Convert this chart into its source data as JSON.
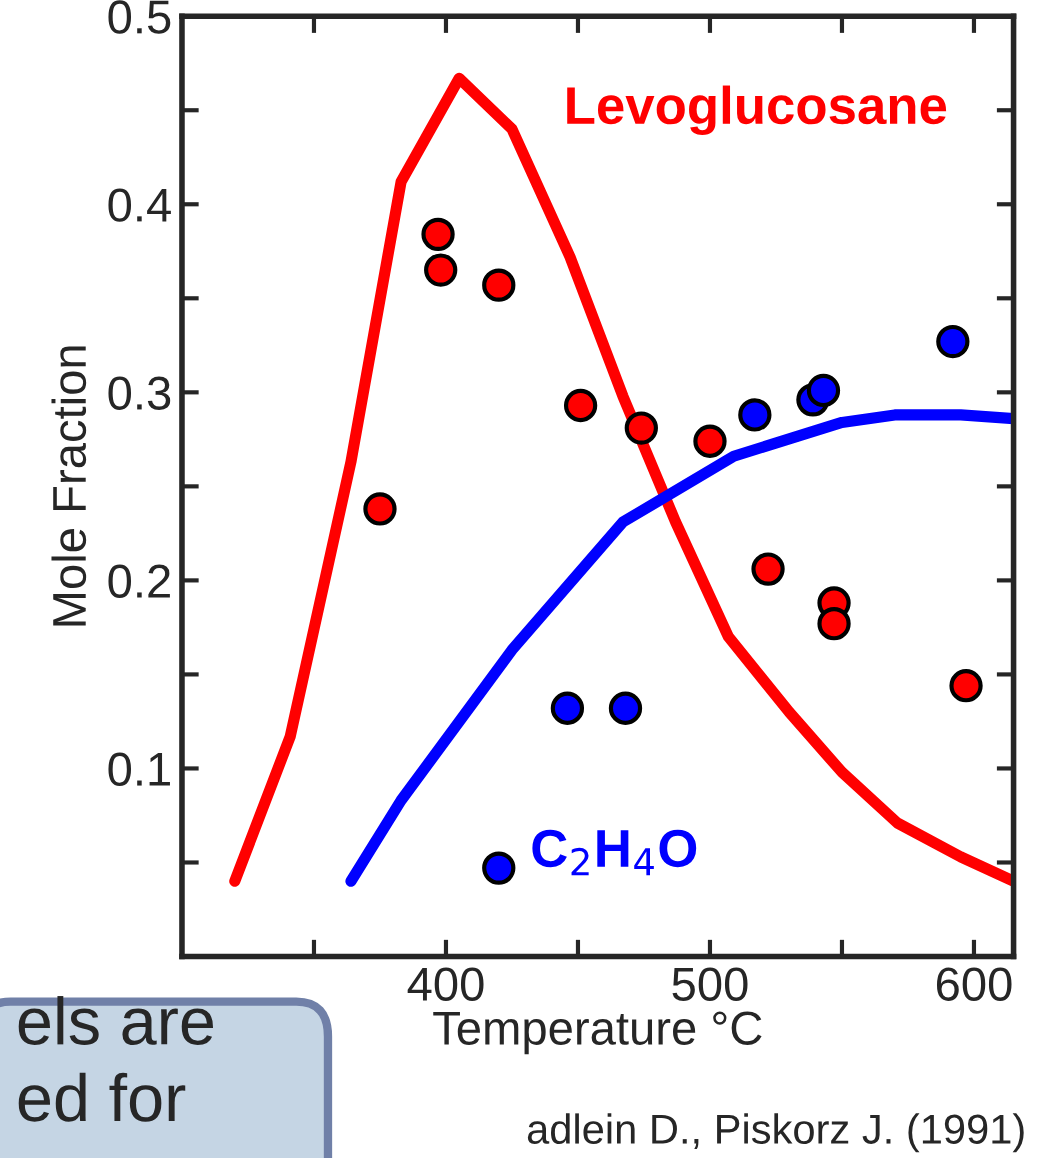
{
  "chart_data": {
    "type": "line",
    "xlabel": "Temperature °C",
    "ylabel": "Mole Fraction",
    "xlim": [
      300,
      615
    ],
    "ylim": [
      0,
      0.5
    ],
    "xticks": [
      {
        "value": 350,
        "label": null
      },
      400,
      {
        "value": 450,
        "label": null
      },
      500,
      {
        "value": 550,
        "label": null
      },
      600
    ],
    "yticks": [
      {
        "value": 0.05,
        "label": null
      },
      0.1,
      {
        "value": 0.15,
        "label": null
      },
      0.2,
      {
        "value": 0.25,
        "label": null
      },
      0.3,
      {
        "value": 0.35,
        "label": null
      },
      0.4,
      {
        "value": 0.45,
        "label": null
      },
      0.5
    ],
    "grid": false,
    "legend": false,
    "series": [
      {
        "name": "Levoglucosane",
        "color": "#ff0000",
        "line_style": "solid",
        "marker": "none",
        "x": [
          320,
          341,
          364,
          383,
          405,
          425,
          447,
          467,
          487,
          507,
          530,
          550,
          571,
          595,
          615
        ],
        "values": [
          0.04,
          0.117,
          0.263,
          0.412,
          0.467,
          0.44,
          0.372,
          0.298,
          0.231,
          0.17,
          0.13,
          0.098,
          0.071,
          0.053,
          0.04
        ]
      },
      {
        "name": "C$_{2}$H$_{4}$O",
        "color": "#0000ff",
        "line_style": "solid",
        "marker": "none",
        "x": [
          364,
          383,
          425,
          467,
          509,
          550,
          570,
          595,
          615
        ],
        "values": [
          0.04,
          0.083,
          0.163,
          0.231,
          0.266,
          0.284,
          0.288,
          0.288,
          0.286
        ]
      },
      {
        "type": "scatter",
        "color": "#ff0000",
        "marker": "circle",
        "x": [
          375,
          397,
          398,
          420,
          451,
          474,
          500,
          522,
          547,
          547,
          597
        ],
        "values": [
          0.238,
          0.384,
          0.365,
          0.357,
          0.293,
          0.281,
          0.274,
          0.206,
          0.188,
          0.177,
          0.144
        ]
      },
      {
        "type": "scatter",
        "color": "#0000ff",
        "marker": "circle",
        "x": [
          420,
          446,
          468,
          517,
          539,
          543,
          592
        ],
        "values": [
          0.047,
          0.132,
          0.132,
          0.288,
          0.296,
          0.301,
          0.327
        ]
      }
    ],
    "annotations": [
      "adlein D., Piskorz J. (1991)",
      "els are\ned for"
    ]
  }
}
